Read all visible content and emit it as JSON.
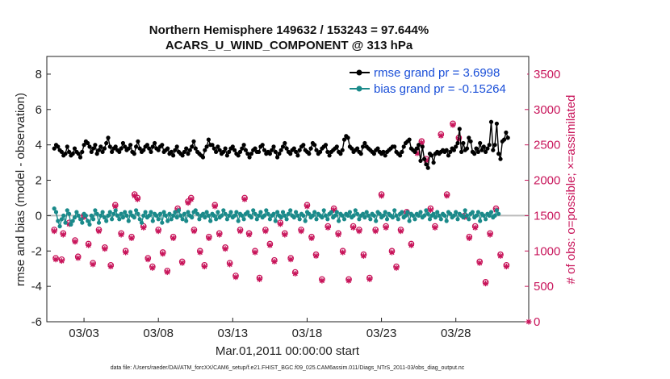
{
  "chart_data": {
    "type": "line",
    "title_line1": "Northern Hemisphere 149632 / 153243 = 97.644%",
    "title_line2": "ACARS_U_WIND_COMPONENT @ 313 hPa",
    "ylabel_left": "rmse and bias (model - observation)",
    "ylabel_right": "# of obs: o=possible; ×=assimilated",
    "xlabel": "Mar.01,2011 00:00:00 start",
    "footnote": "data file: /Users/raeder/DAI/ATM_forcXX/CAM6_setup/f.e21.FHIST_BGC.f09_025.CAM6assim.011/Diags_NTrS_2011-03/obs_diag_output.nc",
    "ylim_left": [
      -6,
      9
    ],
    "ylim_right": [
      0,
      3750
    ],
    "xlim": [
      0.5,
      32.9
    ],
    "left_ticks": [
      "-6",
      "-4",
      "-2",
      "0",
      "2",
      "4",
      "6",
      "8"
    ],
    "left_tick_values": [
      -6,
      -4,
      -2,
      0,
      2,
      4,
      6,
      8
    ],
    "right_ticks": [
      "0",
      "500",
      "1000",
      "1500",
      "2000",
      "2500",
      "3000",
      "3500"
    ],
    "right_tick_values": [
      0,
      500,
      1000,
      1500,
      2000,
      2500,
      3000,
      3500
    ],
    "x_ticks": [
      "03/03",
      "03/08",
      "03/13",
      "03/18",
      "03/23",
      "03/28"
    ],
    "x_tick_values": [
      3,
      8,
      13,
      18,
      23,
      28
    ],
    "series": [
      {
        "name": "rmse grand pr = 3.6998",
        "color": "#000000",
        "axis": "left",
        "values": [
          3.8,
          4.0,
          3.9,
          3.7,
          3.6,
          3.4,
          3.5,
          3.9,
          3.6,
          3.4,
          3.5,
          3.8,
          3.6,
          3.5,
          3.3,
          3.6,
          4.0,
          4.2,
          4.1,
          3.9,
          3.6,
          3.8,
          4.0,
          3.5,
          3.7,
          3.9,
          3.6,
          3.8,
          4.1,
          4.4,
          3.9,
          3.6,
          3.8,
          3.9,
          3.7,
          3.6,
          3.8,
          4.1,
          3.9,
          3.7,
          3.8,
          4.0,
          3.6,
          3.5,
          3.9,
          4.2,
          3.8,
          3.6,
          3.7,
          3.9,
          4.0,
          3.8,
          3.6,
          3.9,
          4.1,
          3.8,
          3.7,
          3.9,
          4.0,
          3.6,
          3.7,
          3.8,
          3.5,
          3.6,
          3.4,
          3.7,
          3.9,
          3.6,
          3.5,
          3.4,
          3.6,
          3.8,
          3.5,
          3.7,
          3.9,
          4.2,
          3.8,
          3.6,
          3.5,
          3.4,
          3.3,
          3.7,
          3.9,
          4.3,
          4.0,
          4.0,
          3.8,
          3.6,
          3.9,
          3.7,
          3.5,
          3.6,
          3.8,
          3.4,
          3.6,
          3.8,
          3.9,
          3.7,
          3.5,
          3.4,
          3.6,
          3.8,
          4.0,
          3.7,
          3.5,
          3.3,
          3.5,
          3.7,
          3.8,
          3.6,
          3.6,
          3.9,
          4.0,
          3.7,
          3.5,
          3.6,
          3.5,
          3.7,
          3.9,
          3.6,
          3.3,
          3.5,
          3.7,
          3.9,
          4.1,
          3.8,
          3.6,
          3.5,
          3.7,
          3.8,
          3.6,
          3.4,
          3.7,
          3.9,
          4.0,
          3.7,
          3.6,
          3.5,
          3.8,
          4.1,
          4.0,
          3.7,
          3.5,
          3.6,
          3.8,
          3.9,
          4.0,
          3.6,
          3.4,
          3.6,
          3.7,
          3.8,
          3.9,
          3.6,
          3.5,
          3.7,
          4.3,
          4.5,
          4.4,
          3.9,
          3.8,
          3.6,
          3.7,
          3.8,
          3.6,
          3.5,
          3.9,
          4.1,
          3.9,
          3.8,
          3.7,
          3.6,
          3.5,
          3.7,
          3.8,
          3.6,
          3.5,
          3.6,
          3.4,
          3.6,
          3.7,
          3.8,
          3.9,
          3.9,
          3.6,
          3.5,
          3.4,
          3.6,
          3.9,
          4.1,
          4.2,
          4.3,
          3.8,
          3.7,
          3.6,
          3.8,
          4.0,
          3.1,
          3.9,
          3.2,
          2.9,
          2.7,
          3.5,
          3.4,
          3.0,
          3.5,
          3.6,
          3.5,
          3.6,
          3.7,
          3.6,
          3.7,
          3.4,
          3.6,
          3.8,
          3.7,
          3.9,
          4.1,
          4.9,
          3.6,
          4.1,
          3.7,
          3.8,
          4.4,
          4.2,
          3.6,
          3.5,
          3.8,
          3.6,
          4.1,
          3.7,
          3.9,
          3.6,
          3.8,
          4.0,
          5.3,
          3.7,
          4.0,
          5.2,
          3.5,
          3.2,
          4.2,
          4.3,
          4.7,
          4.4
        ],
        "stride": 0.125
      },
      {
        "name": "bias grand pr = -0.15264",
        "color": "#1a8a8a",
        "axis": "left",
        "values": [
          0.4,
          0.2,
          -0.3,
          -0.6,
          -0.2,
          0.0,
          -0.4,
          0.3,
          0.1,
          -0.5,
          -0.3,
          -0.1,
          0.2,
          0.0,
          -0.2,
          -0.4,
          0.1,
          0.0,
          -0.3,
          -0.5,
          0.0,
          -0.2,
          0.3,
          0.1,
          -0.4,
          0.0,
          0.2,
          -0.1,
          -0.3,
          0.0,
          0.2,
          -0.2,
          0.1,
          0.3,
          0.0,
          -0.2,
          0.1,
          -0.1,
          0.2,
          0.0,
          -0.3,
          0.2,
          0.0,
          -0.1,
          0.3,
          0.1,
          -0.2,
          -0.4,
          0.0,
          0.2,
          -0.1,
          0.0,
          0.2,
          -0.3,
          0.1,
          0.0,
          -0.2,
          0.1,
          -0.4,
          0.2,
          0.0,
          -0.3,
          0.1,
          -0.2,
          0.0,
          0.2,
          -0.1,
          0.3,
          0.0,
          -0.2,
          0.1,
          -0.3,
          0.2,
          0.0,
          -0.1,
          0.2,
          0.3,
          0.1,
          -0.2,
          0.0,
          0.1,
          -0.1,
          0.2,
          0.0,
          -0.3,
          0.1,
          0.0,
          -0.2,
          0.2,
          -0.1,
          0.0,
          0.3,
          0.1,
          -0.2,
          0.0,
          0.2,
          -0.1,
          0.0,
          0.2,
          -0.3,
          0.1,
          0.0,
          -0.2,
          0.1,
          0.2,
          0.0,
          -0.1,
          0.3,
          0.1,
          -0.2,
          0.0,
          0.2,
          -0.1,
          0.0,
          0.3,
          0.1,
          -0.2,
          0.0,
          0.1,
          -0.3,
          0.2,
          0.0,
          -0.1,
          0.2,
          0.0,
          -0.2,
          0.1,
          0.3,
          0.0,
          -0.1,
          0.2,
          0.0,
          -0.2,
          0.1,
          0.0,
          -0.3,
          0.2,
          0.1,
          -0.1,
          0.0,
          0.2,
          -0.2,
          0.1,
          0.0,
          -0.1,
          0.3,
          0.0,
          -0.2,
          0.1,
          0.2,
          -0.1,
          0.0,
          0.2,
          -0.3,
          0.1,
          0.0,
          -0.2,
          0.1,
          0.0,
          0.2,
          -0.1,
          0.0,
          0.3,
          0.1,
          -0.2,
          0.0,
          0.1,
          -0.1,
          0.2,
          0.0,
          -0.2,
          0.1,
          0.0,
          -0.3,
          0.2,
          0.1,
          -0.1,
          0.0,
          0.2,
          -0.2,
          0.1,
          0.0,
          -0.1,
          0.3,
          0.0,
          -0.2,
          0.1,
          0.2,
          -0.1,
          0.0,
          0.2,
          -0.3,
          0.1,
          0.0,
          -0.2,
          0.1,
          0.0,
          0.2,
          -0.1,
          0.0,
          0.3,
          0.1,
          -0.2,
          0.0,
          0.1,
          -0.1,
          0.2,
          0.0,
          -0.2,
          0.1,
          0.0,
          -0.3,
          0.2,
          0.1,
          -0.1,
          0.0,
          0.2,
          -0.2,
          0.1,
          0.0,
          -0.1,
          0.3,
          0.0,
          -0.2,
          0.1,
          0.2,
          -0.1,
          0.0,
          0.2,
          -0.3,
          0.1,
          0.0,
          -0.2,
          0.1,
          0.0,
          0.2,
          -0.1,
          0.0,
          0.3,
          0.1
        ],
        "stride": 0.125
      }
    ],
    "obs_possible": {
      "name": "possible",
      "color": "#c8145a",
      "axis": "right",
      "points": [
        [
          1.0,
          1300
        ],
        [
          1.1,
          900
        ],
        [
          1.5,
          880
        ],
        [
          1.6,
          1250
        ],
        [
          2.0,
          1400
        ],
        [
          2.4,
          1150
        ],
        [
          2.6,
          920
        ],
        [
          3.0,
          1500
        ],
        [
          3.3,
          1100
        ],
        [
          3.6,
          830
        ],
        [
          4.0,
          1300
        ],
        [
          4.4,
          1050
        ],
        [
          4.8,
          800
        ],
        [
          5.1,
          1650
        ],
        [
          5.5,
          1250
        ],
        [
          5.8,
          1000
        ],
        [
          6.2,
          1200
        ],
        [
          6.4,
          1800
        ],
        [
          6.6,
          1750
        ],
        [
          7.0,
          1350
        ],
        [
          7.3,
          900
        ],
        [
          7.6,
          780
        ],
        [
          8.0,
          1300
        ],
        [
          8.3,
          980
        ],
        [
          8.6,
          720
        ],
        [
          9.0,
          1200
        ],
        [
          9.3,
          1600
        ],
        [
          9.6,
          850
        ],
        [
          10.0,
          1700
        ],
        [
          10.2,
          1750
        ],
        [
          10.4,
          1300
        ],
        [
          10.8,
          1000
        ],
        [
          11.1,
          800
        ],
        [
          11.4,
          1200
        ],
        [
          11.8,
          1650
        ],
        [
          12.1,
          1250
        ],
        [
          12.5,
          1050
        ],
        [
          12.8,
          830
        ],
        [
          13.2,
          650
        ],
        [
          13.5,
          1300
        ],
        [
          13.8,
          1750
        ],
        [
          14.1,
          1250
        ],
        [
          14.5,
          1000
        ],
        [
          14.8,
          620
        ],
        [
          15.2,
          1300
        ],
        [
          15.5,
          1100
        ],
        [
          15.8,
          870
        ],
        [
          16.2,
          1400
        ],
        [
          16.5,
          1250
        ],
        [
          16.9,
          900
        ],
        [
          17.2,
          700
        ],
        [
          17.6,
          1300
        ],
        [
          18.0,
          1650
        ],
        [
          18.3,
          1200
        ],
        [
          18.6,
          950
        ],
        [
          19.0,
          600
        ],
        [
          19.4,
          1350
        ],
        [
          19.8,
          1600
        ],
        [
          20.1,
          1250
        ],
        [
          20.4,
          1000
        ],
        [
          20.8,
          600
        ],
        [
          21.1,
          1350
        ],
        [
          21.5,
          1300
        ],
        [
          21.8,
          950
        ],
        [
          22.2,
          620
        ],
        [
          22.6,
          1300
        ],
        [
          23.0,
          1800
        ],
        [
          23.3,
          1350
        ],
        [
          23.7,
          1000
        ],
        [
          24.0,
          780
        ],
        [
          24.3,
          1300
        ],
        [
          24.7,
          1550
        ],
        [
          25.0,
          1100
        ],
        [
          25.4,
          2400
        ],
        [
          25.7,
          2550
        ],
        [
          26.0,
          2300
        ],
        [
          26.3,
          1600
        ],
        [
          26.6,
          1350
        ],
        [
          27.0,
          2650
        ],
        [
          27.4,
          1800
        ],
        [
          27.8,
          2800
        ],
        [
          28.2,
          2600
        ],
        [
          28.6,
          1500
        ],
        [
          28.9,
          1200
        ],
        [
          29.3,
          1350
        ],
        [
          29.6,
          850
        ],
        [
          30.0,
          560
        ],
        [
          30.3,
          1250
        ],
        [
          30.7,
          1600
        ],
        [
          31.0,
          950
        ],
        [
          31.4,
          800
        ]
      ]
    },
    "obs_assimilated": {
      "name": "assimilated",
      "color": "#c8145a",
      "axis": "right",
      "points": [
        [
          1.0,
          1280
        ],
        [
          1.1,
          880
        ],
        [
          1.5,
          860
        ],
        [
          1.6,
          1230
        ],
        [
          2.0,
          1380
        ],
        [
          2.4,
          1130
        ],
        [
          2.6,
          900
        ],
        [
          3.0,
          1480
        ],
        [
          3.3,
          1080
        ],
        [
          3.6,
          810
        ],
        [
          4.0,
          1280
        ],
        [
          4.4,
          1030
        ],
        [
          4.8,
          780
        ],
        [
          5.1,
          1630
        ],
        [
          5.5,
          1230
        ],
        [
          5.8,
          980
        ],
        [
          6.2,
          1180
        ],
        [
          6.4,
          1780
        ],
        [
          6.6,
          1730
        ],
        [
          7.0,
          1330
        ],
        [
          7.3,
          880
        ],
        [
          7.6,
          760
        ],
        [
          8.0,
          1280
        ],
        [
          8.3,
          960
        ],
        [
          8.6,
          700
        ],
        [
          9.0,
          1180
        ],
        [
          9.3,
          1580
        ],
        [
          9.6,
          830
        ],
        [
          10.0,
          1680
        ],
        [
          10.2,
          1730
        ],
        [
          10.4,
          1280
        ],
        [
          10.8,
          980
        ],
        [
          11.1,
          780
        ],
        [
          11.4,
          1180
        ],
        [
          11.8,
          1630
        ],
        [
          12.1,
          1230
        ],
        [
          12.5,
          1030
        ],
        [
          12.8,
          810
        ],
        [
          13.2,
          630
        ],
        [
          13.5,
          1280
        ],
        [
          13.8,
          1730
        ],
        [
          14.1,
          1230
        ],
        [
          14.5,
          980
        ],
        [
          14.8,
          600
        ],
        [
          15.2,
          1280
        ],
        [
          15.5,
          1080
        ],
        [
          15.8,
          850
        ],
        [
          16.2,
          1380
        ],
        [
          16.5,
          1230
        ],
        [
          16.9,
          880
        ],
        [
          17.2,
          680
        ],
        [
          17.6,
          1280
        ],
        [
          18.0,
          1630
        ],
        [
          18.3,
          1180
        ],
        [
          18.6,
          930
        ],
        [
          19.0,
          580
        ],
        [
          19.4,
          1330
        ],
        [
          19.8,
          1580
        ],
        [
          20.1,
          1230
        ],
        [
          20.4,
          980
        ],
        [
          20.8,
          580
        ],
        [
          21.1,
          1330
        ],
        [
          21.5,
          1280
        ],
        [
          21.8,
          930
        ],
        [
          22.2,
          600
        ],
        [
          22.6,
          1280
        ],
        [
          23.0,
          1780
        ],
        [
          23.3,
          1330
        ],
        [
          23.7,
          980
        ],
        [
          24.0,
          760
        ],
        [
          24.3,
          1280
        ],
        [
          24.7,
          1530
        ],
        [
          25.0,
          1080
        ],
        [
          25.4,
          2380
        ],
        [
          25.7,
          2530
        ],
        [
          26.0,
          2280
        ],
        [
          26.3,
          1580
        ],
        [
          26.6,
          1330
        ],
        [
          27.0,
          2630
        ],
        [
          27.4,
          1780
        ],
        [
          27.8,
          2780
        ],
        [
          28.2,
          2580
        ],
        [
          28.6,
          1480
        ],
        [
          28.9,
          1180
        ],
        [
          29.3,
          1330
        ],
        [
          29.6,
          830
        ],
        [
          30.0,
          540
        ],
        [
          30.3,
          1230
        ],
        [
          30.7,
          1580
        ],
        [
          31.0,
          930
        ],
        [
          31.4,
          780
        ],
        [
          32.9,
          0
        ]
      ]
    },
    "legend_location": "top-right"
  }
}
